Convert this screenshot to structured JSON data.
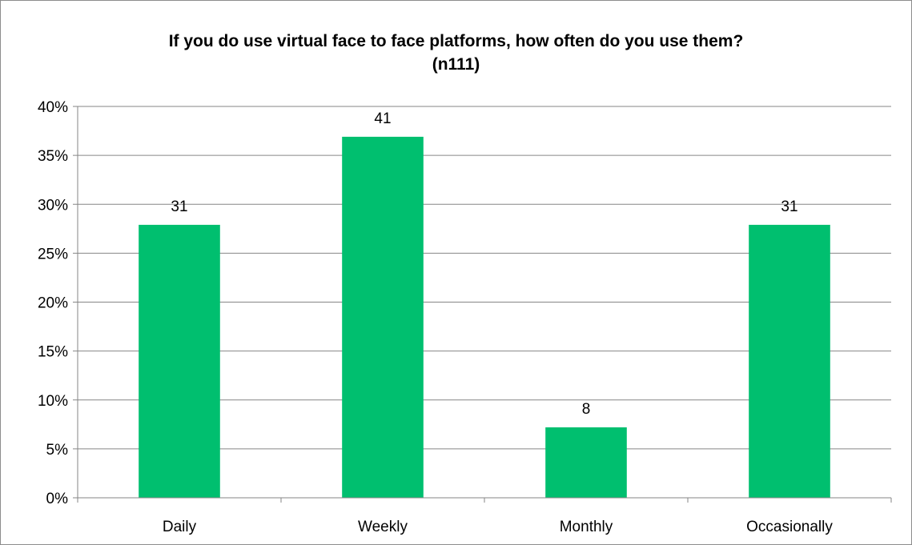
{
  "chart_data": {
    "type": "bar",
    "title_line1": "If you do use virtual face to face platforms, how often do you use them?",
    "title_line2": "(n111)",
    "categories": [
      "Daily",
      "Weekly",
      "Monthly",
      "Occasionally"
    ],
    "values": [
      27.9,
      36.9,
      7.2,
      27.9
    ],
    "data_labels": [
      "31",
      "41",
      "8",
      "31"
    ],
    "ylim": [
      0,
      40
    ],
    "yticks": [
      "0%",
      "5%",
      "10%",
      "15%",
      "20%",
      "25%",
      "30%",
      "35%",
      "40%"
    ],
    "ytick_values": [
      0,
      5,
      10,
      15,
      20,
      25,
      30,
      35,
      40
    ],
    "grid": true,
    "legend": false,
    "bar_color": "#00bf6f",
    "grid_color": "#868686"
  }
}
